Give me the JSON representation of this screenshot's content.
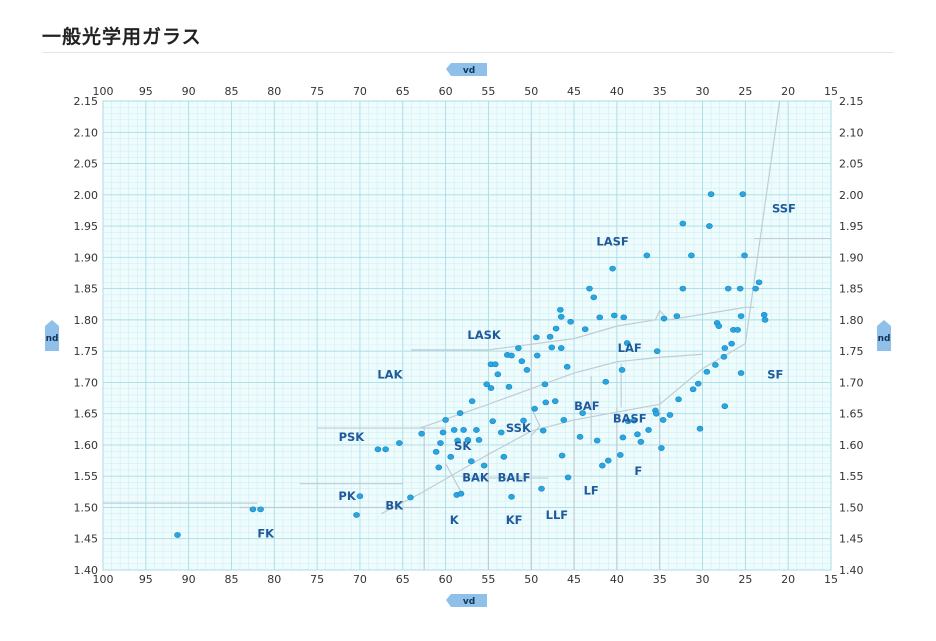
{
  "page": {
    "title": "一般光学用ガラス"
  },
  "chart_data": {
    "type": "scatter",
    "title": "",
    "xlabel": "νd",
    "ylabel": "nd",
    "x_axis_label_short": "vd",
    "y_axis_label_short": "nd",
    "xlim": [
      100,
      15
    ],
    "ylim": [
      1.4,
      2.15
    ],
    "x_reversed": true,
    "grid": true,
    "x_ticks": [
      "100",
      "95",
      "90",
      "85",
      "80",
      "75",
      "70",
      "65",
      "60",
      "55",
      "50",
      "45",
      "40",
      "35",
      "30",
      "25",
      "20",
      "15"
    ],
    "y_ticks": [
      "1.40",
      "1.45",
      "1.50",
      "1.55",
      "1.60",
      "1.65",
      "1.70",
      "1.75",
      "1.80",
      "1.85",
      "1.90",
      "1.95",
      "2.00",
      "2.05",
      "2.10",
      "2.15"
    ],
    "regions": [
      {
        "name": "SSF",
        "x": 20.5,
        "y": 1.978
      },
      {
        "name": "LASF",
        "x": 40.5,
        "y": 1.925
      },
      {
        "name": "LASK",
        "x": 55.5,
        "y": 1.776
      },
      {
        "name": "LAF",
        "x": 38.5,
        "y": 1.755
      },
      {
        "name": "LAK",
        "x": 66.5,
        "y": 1.713
      },
      {
        "name": "SF",
        "x": 21.5,
        "y": 1.713
      },
      {
        "name": "BAF",
        "x": 43.5,
        "y": 1.662
      },
      {
        "name": "BASF",
        "x": 38.5,
        "y": 1.642
      },
      {
        "name": "SSK",
        "x": 51.5,
        "y": 1.627
      },
      {
        "name": "PSK",
        "x": 71.0,
        "y": 1.613
      },
      {
        "name": "SK",
        "x": 58.0,
        "y": 1.598
      },
      {
        "name": "F",
        "x": 37.5,
        "y": 1.558
      },
      {
        "name": "BAK",
        "x": 56.5,
        "y": 1.548
      },
      {
        "name": "BALF",
        "x": 52.0,
        "y": 1.548
      },
      {
        "name": "LF",
        "x": 43.0,
        "y": 1.527
      },
      {
        "name": "PK",
        "x": 71.5,
        "y": 1.518
      },
      {
        "name": "BK",
        "x": 66.0,
        "y": 1.503
      },
      {
        "name": "LLF",
        "x": 47.0,
        "y": 1.488
      },
      {
        "name": "K",
        "x": 59.0,
        "y": 1.48
      },
      {
        "name": "KF",
        "x": 52.0,
        "y": 1.48
      },
      {
        "name": "FK",
        "x": 81.0,
        "y": 1.458
      }
    ],
    "series": [
      {
        "points": [
          [
            91.3,
            1.456
          ],
          [
            82.5,
            1.497
          ],
          [
            81.6,
            1.497
          ],
          [
            70.4,
            1.488
          ],
          [
            70.0,
            1.518
          ],
          [
            67.9,
            1.593
          ],
          [
            67.0,
            1.593
          ],
          [
            65.4,
            1.603
          ],
          [
            64.1,
            1.516
          ],
          [
            62.8,
            1.618
          ],
          [
            61.1,
            1.589
          ],
          [
            60.8,
            1.564
          ],
          [
            60.6,
            1.603
          ],
          [
            60.3,
            1.62
          ],
          [
            60.0,
            1.64
          ],
          [
            59.4,
            1.581
          ],
          [
            59.0,
            1.624
          ],
          [
            58.7,
            1.52
          ],
          [
            58.6,
            1.607
          ],
          [
            58.3,
            1.651
          ],
          [
            58.2,
            1.522
          ],
          [
            57.9,
            1.624
          ],
          [
            57.4,
            1.608
          ],
          [
            57.0,
            1.574
          ],
          [
            56.9,
            1.67
          ],
          [
            56.4,
            1.624
          ],
          [
            56.1,
            1.608
          ],
          [
            55.5,
            1.567
          ],
          [
            55.2,
            1.697
          ],
          [
            54.7,
            1.691
          ],
          [
            54.7,
            1.729
          ],
          [
            54.5,
            1.638
          ],
          [
            54.2,
            1.729
          ],
          [
            53.9,
            1.713
          ],
          [
            53.5,
            1.62
          ],
          [
            53.2,
            1.581
          ],
          [
            52.8,
            1.744
          ],
          [
            52.6,
            1.693
          ],
          [
            52.3,
            1.743
          ],
          [
            52.3,
            1.517
          ],
          [
            51.5,
            1.755
          ],
          [
            51.1,
            1.734
          ],
          [
            50.9,
            1.639
          ],
          [
            50.5,
            1.72
          ],
          [
            49.6,
            1.658
          ],
          [
            49.4,
            1.772
          ],
          [
            49.3,
            1.743
          ],
          [
            48.8,
            1.53
          ],
          [
            48.6,
            1.623
          ],
          [
            48.4,
            1.697
          ],
          [
            48.3,
            1.668
          ],
          [
            47.8,
            1.773
          ],
          [
            47.6,
            1.756
          ],
          [
            47.2,
            1.67
          ],
          [
            47.1,
            1.786
          ],
          [
            46.6,
            1.816
          ],
          [
            46.5,
            1.805
          ],
          [
            46.5,
            1.755
          ],
          [
            46.4,
            1.583
          ],
          [
            46.2,
            1.64
          ],
          [
            45.8,
            1.725
          ],
          [
            45.7,
            1.548
          ],
          [
            45.4,
            1.797
          ],
          [
            44.3,
            1.613
          ],
          [
            44.0,
            1.651
          ],
          [
            43.7,
            1.785
          ],
          [
            43.2,
            1.85
          ],
          [
            42.7,
            1.836
          ],
          [
            42.3,
            1.607
          ],
          [
            42.0,
            1.804
          ],
          [
            41.7,
            1.567
          ],
          [
            41.3,
            1.701
          ],
          [
            41.0,
            1.575
          ],
          [
            40.5,
            1.882
          ],
          [
            40.3,
            1.807
          ],
          [
            39.6,
            1.584
          ],
          [
            39.4,
            1.72
          ],
          [
            39.3,
            1.612
          ],
          [
            39.2,
            1.804
          ],
          [
            38.8,
            1.763
          ],
          [
            38.7,
            1.638
          ],
          [
            38.0,
            1.639
          ],
          [
            37.6,
            1.617
          ],
          [
            37.2,
            1.605
          ],
          [
            36.5,
            1.903
          ],
          [
            36.3,
            1.624
          ],
          [
            35.5,
            1.655
          ],
          [
            35.4,
            1.65
          ],
          [
            35.3,
            1.75
          ],
          [
            34.8,
            1.595
          ],
          [
            34.6,
            1.64
          ],
          [
            34.5,
            1.802
          ],
          [
            33.8,
            1.648
          ],
          [
            33.0,
            1.806
          ],
          [
            32.8,
            1.673
          ],
          [
            32.3,
            1.954
          ],
          [
            32.3,
            1.85
          ],
          [
            31.3,
            1.903
          ],
          [
            31.1,
            1.689
          ],
          [
            30.5,
            1.698
          ],
          [
            30.3,
            1.626
          ],
          [
            29.5,
            1.717
          ],
          [
            29.2,
            1.95
          ],
          [
            29.0,
            2.001
          ],
          [
            28.5,
            1.728
          ],
          [
            28.3,
            1.795
          ],
          [
            28.1,
            1.79
          ],
          [
            27.5,
            1.741
          ],
          [
            27.4,
            1.755
          ],
          [
            27.4,
            1.662
          ],
          [
            27.0,
            1.85
          ],
          [
            26.6,
            1.762
          ],
          [
            26.4,
            1.784
          ],
          [
            25.9,
            1.784
          ],
          [
            25.6,
            1.85
          ],
          [
            25.5,
            1.806
          ],
          [
            25.5,
            1.715
          ],
          [
            25.3,
            2.001
          ],
          [
            25.1,
            1.903
          ],
          [
            23.8,
            1.85
          ],
          [
            23.4,
            1.86
          ],
          [
            22.8,
            1.808
          ],
          [
            22.7,
            1.8
          ]
        ]
      }
    ]
  }
}
